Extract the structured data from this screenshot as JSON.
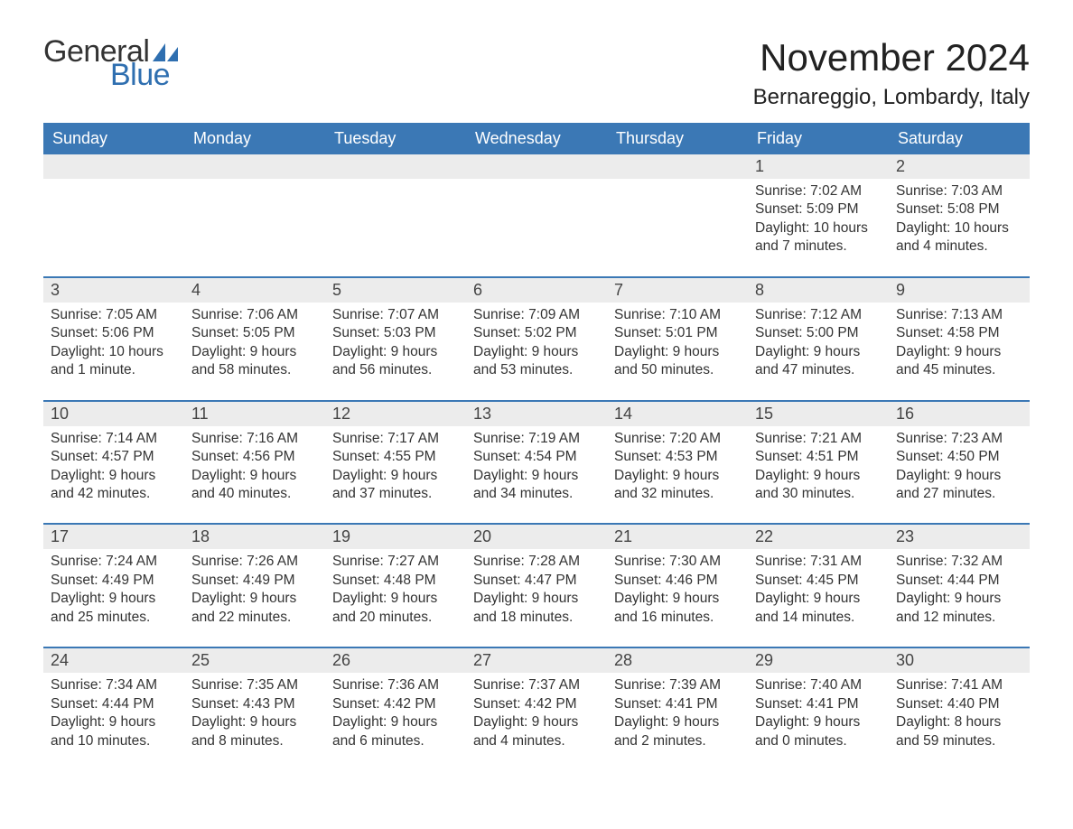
{
  "brand": {
    "word1": "General",
    "word2": "Blue",
    "sail_color": "#2f6fb0",
    "text_color_dark": "#333333",
    "text_color_blue": "#2f6fb0"
  },
  "title": "November 2024",
  "location": "Bernareggio, Lombardy, Italy",
  "colors": {
    "header_bg": "#3b78b5",
    "header_text": "#ffffff",
    "daynum_bg": "#ececec",
    "rule": "#3b78b5",
    "body_text": "#333333",
    "page_bg": "#ffffff"
  },
  "day_headers": [
    "Sunday",
    "Monday",
    "Tuesday",
    "Wednesday",
    "Thursday",
    "Friday",
    "Saturday"
  ],
  "weeks": [
    [
      {
        "blank": true
      },
      {
        "blank": true
      },
      {
        "blank": true
      },
      {
        "blank": true
      },
      {
        "blank": true
      },
      {
        "day": "1",
        "sunrise": "Sunrise: 7:02 AM",
        "sunset": "Sunset: 5:09 PM",
        "daylight": "Daylight: 10 hours and 7 minutes."
      },
      {
        "day": "2",
        "sunrise": "Sunrise: 7:03 AM",
        "sunset": "Sunset: 5:08 PM",
        "daylight": "Daylight: 10 hours and 4 minutes."
      }
    ],
    [
      {
        "day": "3",
        "sunrise": "Sunrise: 7:05 AM",
        "sunset": "Sunset: 5:06 PM",
        "daylight": "Daylight: 10 hours and 1 minute."
      },
      {
        "day": "4",
        "sunrise": "Sunrise: 7:06 AM",
        "sunset": "Sunset: 5:05 PM",
        "daylight": "Daylight: 9 hours and 58 minutes."
      },
      {
        "day": "5",
        "sunrise": "Sunrise: 7:07 AM",
        "sunset": "Sunset: 5:03 PM",
        "daylight": "Daylight: 9 hours and 56 minutes."
      },
      {
        "day": "6",
        "sunrise": "Sunrise: 7:09 AM",
        "sunset": "Sunset: 5:02 PM",
        "daylight": "Daylight: 9 hours and 53 minutes."
      },
      {
        "day": "7",
        "sunrise": "Sunrise: 7:10 AM",
        "sunset": "Sunset: 5:01 PM",
        "daylight": "Daylight: 9 hours and 50 minutes."
      },
      {
        "day": "8",
        "sunrise": "Sunrise: 7:12 AM",
        "sunset": "Sunset: 5:00 PM",
        "daylight": "Daylight: 9 hours and 47 minutes."
      },
      {
        "day": "9",
        "sunrise": "Sunrise: 7:13 AM",
        "sunset": "Sunset: 4:58 PM",
        "daylight": "Daylight: 9 hours and 45 minutes."
      }
    ],
    [
      {
        "day": "10",
        "sunrise": "Sunrise: 7:14 AM",
        "sunset": "Sunset: 4:57 PM",
        "daylight": "Daylight: 9 hours and 42 minutes."
      },
      {
        "day": "11",
        "sunrise": "Sunrise: 7:16 AM",
        "sunset": "Sunset: 4:56 PM",
        "daylight": "Daylight: 9 hours and 40 minutes."
      },
      {
        "day": "12",
        "sunrise": "Sunrise: 7:17 AM",
        "sunset": "Sunset: 4:55 PM",
        "daylight": "Daylight: 9 hours and 37 minutes."
      },
      {
        "day": "13",
        "sunrise": "Sunrise: 7:19 AM",
        "sunset": "Sunset: 4:54 PM",
        "daylight": "Daylight: 9 hours and 34 minutes."
      },
      {
        "day": "14",
        "sunrise": "Sunrise: 7:20 AM",
        "sunset": "Sunset: 4:53 PM",
        "daylight": "Daylight: 9 hours and 32 minutes."
      },
      {
        "day": "15",
        "sunrise": "Sunrise: 7:21 AM",
        "sunset": "Sunset: 4:51 PM",
        "daylight": "Daylight: 9 hours and 30 minutes."
      },
      {
        "day": "16",
        "sunrise": "Sunrise: 7:23 AM",
        "sunset": "Sunset: 4:50 PM",
        "daylight": "Daylight: 9 hours and 27 minutes."
      }
    ],
    [
      {
        "day": "17",
        "sunrise": "Sunrise: 7:24 AM",
        "sunset": "Sunset: 4:49 PM",
        "daylight": "Daylight: 9 hours and 25 minutes."
      },
      {
        "day": "18",
        "sunrise": "Sunrise: 7:26 AM",
        "sunset": "Sunset: 4:49 PM",
        "daylight": "Daylight: 9 hours and 22 minutes."
      },
      {
        "day": "19",
        "sunrise": "Sunrise: 7:27 AM",
        "sunset": "Sunset: 4:48 PM",
        "daylight": "Daylight: 9 hours and 20 minutes."
      },
      {
        "day": "20",
        "sunrise": "Sunrise: 7:28 AM",
        "sunset": "Sunset: 4:47 PM",
        "daylight": "Daylight: 9 hours and 18 minutes."
      },
      {
        "day": "21",
        "sunrise": "Sunrise: 7:30 AM",
        "sunset": "Sunset: 4:46 PM",
        "daylight": "Daylight: 9 hours and 16 minutes."
      },
      {
        "day": "22",
        "sunrise": "Sunrise: 7:31 AM",
        "sunset": "Sunset: 4:45 PM",
        "daylight": "Daylight: 9 hours and 14 minutes."
      },
      {
        "day": "23",
        "sunrise": "Sunrise: 7:32 AM",
        "sunset": "Sunset: 4:44 PM",
        "daylight": "Daylight: 9 hours and 12 minutes."
      }
    ],
    [
      {
        "day": "24",
        "sunrise": "Sunrise: 7:34 AM",
        "sunset": "Sunset: 4:44 PM",
        "daylight": "Daylight: 9 hours and 10 minutes."
      },
      {
        "day": "25",
        "sunrise": "Sunrise: 7:35 AM",
        "sunset": "Sunset: 4:43 PM",
        "daylight": "Daylight: 9 hours and 8 minutes."
      },
      {
        "day": "26",
        "sunrise": "Sunrise: 7:36 AM",
        "sunset": "Sunset: 4:42 PM",
        "daylight": "Daylight: 9 hours and 6 minutes."
      },
      {
        "day": "27",
        "sunrise": "Sunrise: 7:37 AM",
        "sunset": "Sunset: 4:42 PM",
        "daylight": "Daylight: 9 hours and 4 minutes."
      },
      {
        "day": "28",
        "sunrise": "Sunrise: 7:39 AM",
        "sunset": "Sunset: 4:41 PM",
        "daylight": "Daylight: 9 hours and 2 minutes."
      },
      {
        "day": "29",
        "sunrise": "Sunrise: 7:40 AM",
        "sunset": "Sunset: 4:41 PM",
        "daylight": "Daylight: 9 hours and 0 minutes."
      },
      {
        "day": "30",
        "sunrise": "Sunrise: 7:41 AM",
        "sunset": "Sunset: 4:40 PM",
        "daylight": "Daylight: 8 hours and 59 minutes."
      }
    ]
  ]
}
